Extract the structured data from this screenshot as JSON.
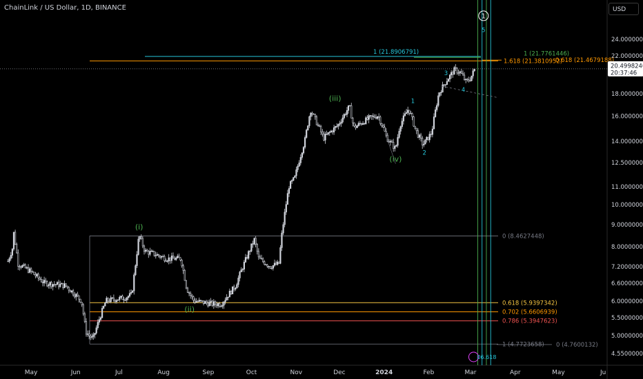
{
  "header": {
    "symbol_line": "ChainLink / US Dollar, 1D, BINANCE",
    "currency_button": "USD"
  },
  "price_tag": {
    "price": "20.4998240",
    "countdown": "20:37:46"
  },
  "colors": {
    "bull": "#d1d4dc",
    "bear": "#d1d4dc",
    "green": "#4caf50",
    "cyan": "#26c6da",
    "orange": "#ff9800",
    "yellow": "#f5c542",
    "red": "#ef5350",
    "grey": "#787b86"
  },
  "chart_data": {
    "type": "candlestick",
    "title": "ChainLink / US Dollar, 1D, BINANCE",
    "y_scale": "log",
    "y_ticks": [
      "4.5500000",
      "5.0000000",
      "5.5000000",
      "6.0000000",
      "6.6000000",
      "7.2000000",
      "8.0000000",
      "9.0000000",
      "10.0000000",
      "11.0000000",
      "12.5000000",
      "14.0000000",
      "16.0000000",
      "18.0000000",
      "20.0000000",
      "22.0000000",
      "24.0000000"
    ],
    "x_ticks": [
      "May",
      "Jun",
      "Jul",
      "Aug",
      "Sep",
      "Oct",
      "Nov",
      "Dec",
      "2024",
      "Feb",
      "Mar",
      "Apr",
      "May",
      "Ju"
    ],
    "price_path": [
      [
        "2023-04-15",
        7.4
      ],
      [
        "2023-04-18",
        7.9
      ],
      [
        "2023-04-19",
        8.6
      ],
      [
        "2023-04-22",
        7.3
      ],
      [
        "2023-05-01",
        7.0
      ],
      [
        "2023-05-10",
        6.6
      ],
      [
        "2023-05-25",
        6.5
      ],
      [
        "2023-06-05",
        6.0
      ],
      [
        "2023-06-08",
        5.1
      ],
      [
        "2023-06-10",
        5.0
      ],
      [
        "2023-06-13",
        4.9
      ],
      [
        "2023-06-17",
        5.4
      ],
      [
        "2023-06-22",
        6.0
      ],
      [
        "2023-07-05",
        6.1
      ],
      [
        "2023-07-10",
        6.2
      ],
      [
        "2023-07-13",
        7.5
      ],
      [
        "2023-07-15",
        8.5
      ],
      [
        "2023-07-19",
        7.8
      ],
      [
        "2023-07-25",
        7.7
      ],
      [
        "2023-08-03",
        7.5
      ],
      [
        "2023-08-13",
        7.5
      ],
      [
        "2023-08-17",
        6.4
      ],
      [
        "2023-08-22",
        6.0
      ],
      [
        "2023-09-04",
        5.9
      ],
      [
        "2023-09-10",
        5.9
      ],
      [
        "2023-09-20",
        6.5
      ],
      [
        "2023-09-28",
        7.6
      ],
      [
        "2023-10-03",
        8.3
      ],
      [
        "2023-10-06",
        7.5
      ],
      [
        "2023-10-14",
        7.2
      ],
      [
        "2023-10-20",
        7.3
      ],
      [
        "2023-10-22",
        8.5
      ],
      [
        "2023-10-27",
        11.0
      ],
      [
        "2023-10-31",
        11.5
      ],
      [
        "2023-11-07",
        14.0
      ],
      [
        "2023-11-11",
        16.5
      ],
      [
        "2023-11-20",
        14.2
      ],
      [
        "2023-11-30",
        15.2
      ],
      [
        "2023-12-08",
        16.8
      ],
      [
        "2023-12-11",
        15.0
      ],
      [
        "2023-12-22",
        15.8
      ],
      [
        "2023-12-28",
        16.0
      ],
      [
        "2024-01-03",
        14.2
      ],
      [
        "2024-01-09",
        13.4
      ],
      [
        "2024-01-12",
        15.2
      ],
      [
        "2024-01-18",
        16.6
      ],
      [
        "2024-01-23",
        14.8
      ],
      [
        "2024-01-28",
        13.7
      ],
      [
        "2024-02-03",
        14.6
      ],
      [
        "2024-02-08",
        18.0
      ],
      [
        "2024-02-14",
        19.4
      ],
      [
        "2024-02-19",
        20.4
      ],
      [
        "2024-02-23",
        20.1
      ],
      [
        "2024-02-27",
        19.1
      ],
      [
        "2024-03-01",
        19.5
      ],
      [
        "2024-03-04",
        20.5
      ]
    ],
    "fib_levels": [
      {
        "label": "0 (8.4627448)",
        "value": 8.4627448,
        "color": "grey"
      },
      {
        "label": "0.618 (5.9397342)",
        "value": 5.9397342,
        "color": "yellow"
      },
      {
        "label": "0.702 (5.6606939)",
        "value": 5.6606939,
        "color": "orange"
      },
      {
        "label": "0.786 (5.3947623)",
        "value": 5.3947623,
        "color": "red"
      },
      {
        "label": "1 (4.7723658)",
        "value": 4.7723658,
        "color": "grey"
      },
      {
        "label": "0 (4.7600132)",
        "value": 4.7600132,
        "color": "grey"
      },
      {
        "label": "1 (21.8906791)",
        "value": 21.8906791,
        "color": "cyan"
      },
      {
        "label": "1.618 (21.3810952)",
        "value": 21.3810952,
        "color": "orange"
      },
      {
        "label": "1 (21.7761446)",
        "value": 21.7761446,
        "color": "green"
      },
      {
        "label": "0.618 (21.4679188)",
        "value": 21.4679188,
        "color": "orange"
      }
    ],
    "wave_labels": [
      {
        "text": "(i)",
        "date": "2023-07-15",
        "price": 8.5,
        "color": "green"
      },
      {
        "text": "(ii)",
        "date": "2023-08-19",
        "price": 6.0,
        "color": "green"
      },
      {
        "text": "(iii)",
        "date": "2023-11-28",
        "price": 16.8,
        "color": "green"
      },
      {
        "text": "(iv)",
        "date": "2024-01-09",
        "price": 13.4,
        "color": "green"
      },
      {
        "text": "1",
        "date": "2024-01-21",
        "price": 16.6,
        "color": "cyan"
      },
      {
        "text": "2",
        "date": "2024-01-29",
        "price": 13.7,
        "color": "cyan"
      },
      {
        "text": "3",
        "date": "2024-02-13",
        "price": 19.4,
        "color": "cyan"
      },
      {
        "text": "4",
        "date": "2024-02-25",
        "price": 19.1,
        "color": "cyan"
      },
      {
        "text": "5",
        "date": "2024-03-10",
        "price": 23.0,
        "color": "cyan"
      },
      {
        "text": "1",
        "date": "2024-03-10",
        "price": 23.5,
        "color": "white"
      }
    ],
    "vertical_lines": [
      "2024-03-06",
      "2024-03-09",
      "2024-03-12",
      "2024-03-15"
    ],
    "time_label": "06.618"
  }
}
